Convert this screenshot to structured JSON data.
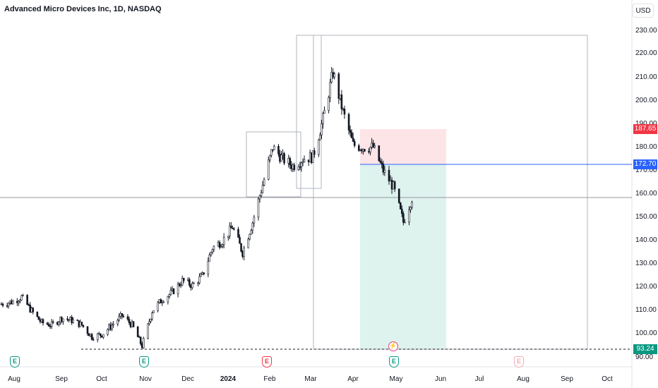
{
  "header": {
    "title": "Advanced Micro Devices Inc, 1D, NASDAQ",
    "currency_button": "USD"
  },
  "price_axis": {
    "labels": [
      "230.00",
      "220.00",
      "210.00",
      "200.00",
      "190.00",
      "180.00",
      "170.00",
      "160.00",
      "150.00",
      "140.00",
      "130.00",
      "120.00",
      "110.00",
      "100.00",
      "90.00"
    ]
  },
  "time_axis": {
    "labels": [
      "Aug",
      "Sep",
      "Oct",
      "Nov",
      "Dec",
      "2024",
      "Feb",
      "Mar",
      "Apr",
      "May",
      "Jun",
      "Jul",
      "Aug",
      "Sep",
      "Oct"
    ]
  },
  "price_tags": {
    "stop": {
      "value": "187.65",
      "color": "#f23645"
    },
    "entry": {
      "value": "172.70",
      "color": "#2962ff"
    },
    "target": {
      "value": "93.24",
      "color": "#089981"
    }
  },
  "events": [
    {
      "letter": "E",
      "type": "earnings",
      "color": "green"
    },
    {
      "letter": "E",
      "type": "earnings",
      "color": "green"
    },
    {
      "letter": "E",
      "type": "earnings",
      "color": "red"
    },
    {
      "letter": "E",
      "type": "earnings",
      "color": "green"
    },
    {
      "letter": "E",
      "type": "earnings-upcoming",
      "color": "pink"
    }
  ],
  "flash_icon": "lightning-icon",
  "colors": {
    "up": "#131722",
    "down": "#131722",
    "stop_zone": "#fce4e7",
    "target_zone": "#def2ee"
  },
  "chart_data": {
    "type": "candlestick",
    "title": "Advanced Micro Devices Inc, 1D, NASDAQ",
    "ylim": [
      90,
      230
    ],
    "x_ticks": [
      "Aug",
      "Sep",
      "Oct",
      "Nov",
      "Dec",
      "2024",
      "Feb",
      "Mar",
      "Apr",
      "May",
      "Jun",
      "Jul",
      "Aug",
      "Sep",
      "Oct"
    ],
    "close_series_approx": [
      [
        "2023-07-20",
        113
      ],
      [
        "2023-07-28",
        114
      ],
      [
        "2023-08-03",
        116
      ],
      [
        "2023-08-10",
        110
      ],
      [
        "2023-08-17",
        105
      ],
      [
        "2023-08-24",
        104
      ],
      [
        "2023-08-31",
        107
      ],
      [
        "2023-09-07",
        106
      ],
      [
        "2023-09-14",
        104
      ],
      [
        "2023-09-21",
        99
      ],
      [
        "2023-09-28",
        100
      ],
      [
        "2023-10-05",
        104
      ],
      [
        "2023-10-12",
        108
      ],
      [
        "2023-10-19",
        104
      ],
      [
        "2023-10-26",
        95
      ],
      [
        "2023-11-02",
        110
      ],
      [
        "2023-11-09",
        115
      ],
      [
        "2023-11-16",
        118
      ],
      [
        "2023-11-23",
        123
      ],
      [
        "2023-11-30",
        121
      ],
      [
        "2023-12-07",
        125
      ],
      [
        "2023-12-14",
        137
      ],
      [
        "2023-12-21",
        140
      ],
      [
        "2023-12-28",
        146
      ],
      [
        "2024-01-04",
        135
      ],
      [
        "2024-01-11",
        148
      ],
      [
        "2024-01-18",
        164
      ],
      [
        "2024-01-25",
        180
      ],
      [
        "2024-02-01",
        175
      ],
      [
        "2024-02-08",
        172
      ],
      [
        "2024-02-15",
        175
      ],
      [
        "2024-02-22",
        176
      ],
      [
        "2024-02-29",
        192
      ],
      [
        "2024-03-07",
        212
      ],
      [
        "2024-03-14",
        195
      ],
      [
        "2024-03-21",
        181
      ],
      [
        "2024-03-28",
        180
      ],
      [
        "2024-04-04",
        180
      ],
      [
        "2024-04-11",
        170
      ],
      [
        "2024-04-18",
        163
      ],
      [
        "2024-04-25",
        148
      ],
      [
        "2024-05-02",
        160
      ]
    ],
    "annotations": {
      "horizontal_line": 158,
      "dashed_support": 93.24,
      "long_position": {
        "entry": 172.7,
        "stop": 187.65,
        "target": 93.24
      },
      "boxes": [
        {
          "from": "2024-01-17",
          "to": "2024-02-22",
          "low": 158,
          "high": 187
        },
        {
          "from": "2024-02-22",
          "to": "2024-03-07",
          "low": 161,
          "high": 228
        },
        {
          "from": "2024-03-01",
          "to": "2024-09-20",
          "low": 93,
          "high": 228
        }
      ]
    }
  }
}
